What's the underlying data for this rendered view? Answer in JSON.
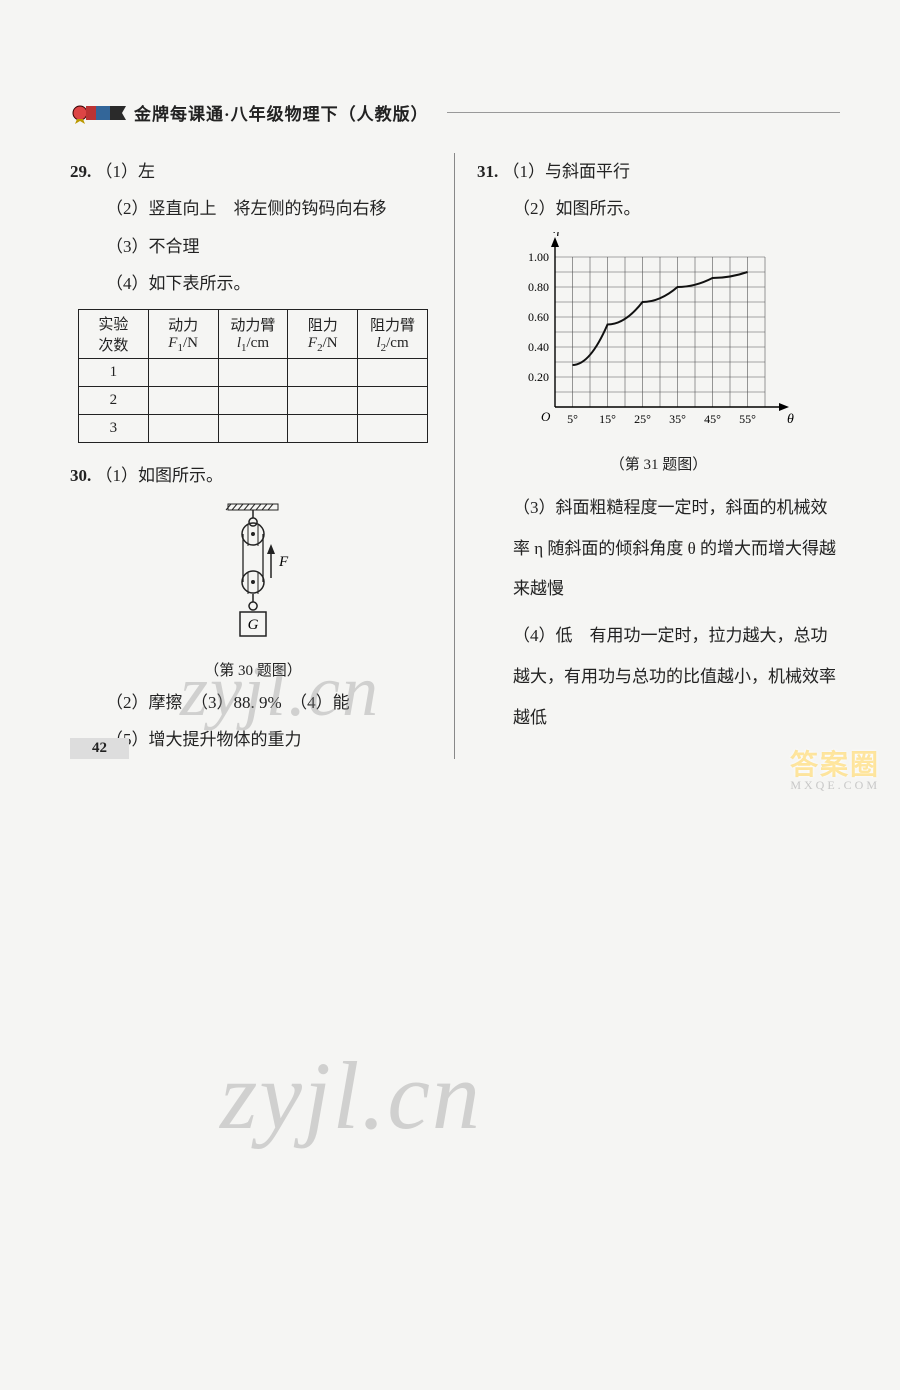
{
  "header": {
    "title": "金牌每课通·八年级物理下（人教版）"
  },
  "q29": {
    "num": "29.",
    "p1": "（1）左",
    "p2": "（2）竖直向上　将左侧的钩码向右移",
    "p3": "（3）不合理",
    "p4": "（4）如下表所示。",
    "table": {
      "headers": [
        "实验次数",
        "动力 F₁/N",
        "动力臂 l₁/cm",
        "阻力 F₂/N",
        "阻力臂 l₂/cm"
      ],
      "rows": [
        "1",
        "2",
        "3"
      ]
    }
  },
  "q30": {
    "num": "30.",
    "p1": "（1）如图所示。",
    "caption": "（第 30 题图）",
    "labelF": "F",
    "labelG": "G",
    "p2": "（2）摩擦　（3）88. 9%　（4）能",
    "p5": "（5）增大提升物体的重力"
  },
  "q31": {
    "num": "31.",
    "p1": "（1）与斜面平行",
    "p2": "（2）如图所示。",
    "caption": "（第 31 题图）",
    "chart": {
      "type": "line",
      "xlabel": "θ",
      "ylabel": "η",
      "x_ticks": [
        "5°",
        "15°",
        "25°",
        "35°",
        "45°",
        "55°"
      ],
      "y_ticks": [
        "0.20",
        "0.40",
        "0.60",
        "0.80",
        "1.00"
      ],
      "ylim": [
        0,
        1.0
      ],
      "points_x": [
        5,
        15,
        25,
        35,
        45,
        55
      ],
      "points_y": [
        0.28,
        0.55,
        0.7,
        0.8,
        0.86,
        0.9
      ],
      "grid_color": "#555",
      "curve_color": "#111",
      "background_color": "#f5f5f3"
    },
    "p3": "（3）斜面粗糙程度一定时，斜面的机械效率 η 随斜面的倾斜角度 θ 的增大而增大得越来越慢",
    "p4": "（4）低　有用功一定时，拉力越大，总功越大，有用功与总功的比值越小，机械效率越低"
  },
  "pageNumber": "42",
  "watermark": "zyjl.cn",
  "corner": "答案圈",
  "cornerSub": "MXQE.COM"
}
